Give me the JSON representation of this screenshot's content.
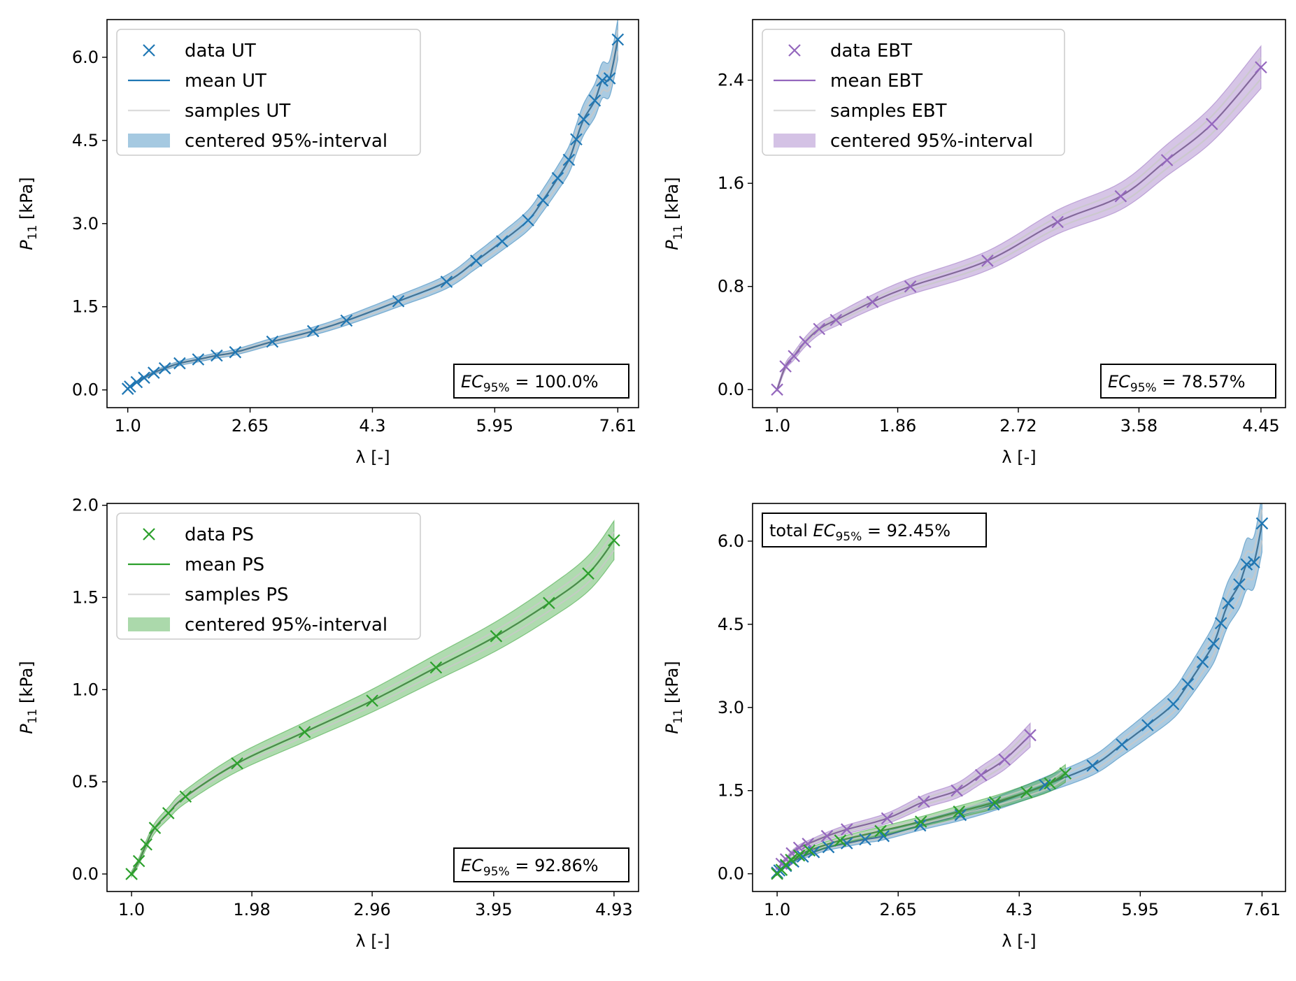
{
  "colors": {
    "ut": "#1f77b4",
    "ebt": "#9467bd",
    "ps": "#2ca02c",
    "sample": "#c8c8c8",
    "mean_overlay": "#707070"
  },
  "chart_data": [
    {
      "type": "line",
      "id": "ut",
      "xlabel": "λ [-]",
      "ylabel_main": "P",
      "ylabel_sub": "11",
      "ylabel_unit": " [kPa]",
      "xlim": [
        0.72,
        7.89
      ],
      "ylim": [
        -0.32,
        6.68
      ],
      "xticks": [
        1.0,
        2.65,
        4.3,
        5.95,
        7.61
      ],
      "xtick_labels": [
        "1.0",
        "2.65",
        "4.3",
        "5.95",
        "7.61"
      ],
      "yticks": [
        0.0,
        1.5,
        3.0,
        4.5,
        6.0
      ],
      "ytick_labels": [
        "0.0",
        "1.5",
        "3.0",
        "4.5",
        "6.0"
      ],
      "legend": [
        "data UT",
        "mean UT",
        "samples UT",
        "centered 95%-interval"
      ],
      "legend_position": "top-left",
      "ec_label": {
        "main": "EC",
        "sub": "95%",
        "value": " = 100.0%"
      },
      "ec_position": "bottom-right",
      "band_halfwidth": 0.055,
      "series": [
        {
          "name": "data UT",
          "color_key": "ut",
          "x": [
            1.0,
            1.03,
            1.12,
            1.22,
            1.35,
            1.5,
            1.7,
            1.95,
            2.2,
            2.45,
            2.95,
            3.5,
            3.95,
            4.65,
            5.3,
            5.7,
            6.05,
            6.4,
            6.6,
            6.8,
            6.95,
            7.05,
            7.15,
            7.3,
            7.4,
            7.5,
            7.61
          ],
          "y": [
            0.02,
            0.06,
            0.14,
            0.22,
            0.31,
            0.39,
            0.48,
            0.55,
            0.62,
            0.68,
            0.87,
            1.06,
            1.25,
            1.6,
            1.95,
            2.33,
            2.68,
            3.06,
            3.42,
            3.82,
            4.15,
            4.52,
            4.88,
            5.22,
            5.58,
            5.62,
            6.32
          ]
        }
      ]
    },
    {
      "type": "line",
      "id": "ebt",
      "xlabel": "λ [-]",
      "ylabel_main": "P",
      "ylabel_sub": "11",
      "ylabel_unit": " [kPa]",
      "xlim": [
        0.825,
        4.625
      ],
      "ylim": [
        -0.14,
        2.87
      ],
      "xticks": [
        1.0,
        1.86,
        2.72,
        3.58,
        4.45
      ],
      "xtick_labels": [
        "1.0",
        "1.86",
        "2.72",
        "3.58",
        "4.45"
      ],
      "yticks": [
        0.0,
        0.8,
        1.6,
        2.4
      ],
      "ytick_labels": [
        "0.0",
        "0.8",
        "1.6",
        "2.4"
      ],
      "legend": [
        "data EBT",
        "mean EBT",
        "samples EBT",
        "centered 95%-interval"
      ],
      "legend_position": "top-left",
      "ec_label": {
        "main": "EC",
        "sub": "95%",
        "value": " = 78.57%"
      },
      "ec_position": "bottom-right",
      "band_halfwidth": 0.06,
      "series": [
        {
          "name": "data EBT",
          "color_key": "ebt",
          "x": [
            1.0,
            1.06,
            1.12,
            1.2,
            1.3,
            1.42,
            1.68,
            1.95,
            2.5,
            3.0,
            3.45,
            3.78,
            4.1,
            4.45
          ],
          "y": [
            0.0,
            0.18,
            0.26,
            0.37,
            0.47,
            0.54,
            0.68,
            0.8,
            1.0,
            1.3,
            1.5,
            1.78,
            2.06,
            2.5
          ]
        }
      ]
    },
    {
      "type": "line",
      "id": "ps",
      "xlabel": "λ [-]",
      "ylabel_main": "P",
      "ylabel_sub": "11",
      "ylabel_unit": " [kPa]",
      "xlim": [
        0.8,
        5.13
      ],
      "ylim": [
        -0.095,
        2.01
      ],
      "xticks": [
        1.0,
        1.98,
        2.96,
        3.95,
        4.93
      ],
      "xtick_labels": [
        "1.0",
        "1.98",
        "2.96",
        "3.95",
        "4.93"
      ],
      "yticks": [
        0.0,
        0.5,
        1.0,
        1.5,
        2.0
      ],
      "ytick_labels": [
        "0.0",
        "0.5",
        "1.0",
        "1.5",
        "2.0"
      ],
      "legend": [
        "data PS",
        "mean PS",
        "samples PS",
        "centered 95%-interval"
      ],
      "legend_position": "top-left",
      "ec_label": {
        "main": "EC",
        "sub": "95%",
        "value": " = 92.86%"
      },
      "ec_position": "bottom-right",
      "band_halfwidth": 0.05,
      "series": [
        {
          "name": "data PS",
          "color_key": "ps",
          "x": [
            1.0,
            1.06,
            1.12,
            1.19,
            1.3,
            1.44,
            1.86,
            2.41,
            2.96,
            3.48,
            3.97,
            4.4,
            4.72,
            4.93
          ],
          "y": [
            0.0,
            0.07,
            0.16,
            0.25,
            0.33,
            0.42,
            0.6,
            0.77,
            0.94,
            1.12,
            1.29,
            1.47,
            1.63,
            1.81
          ]
        }
      ]
    },
    {
      "type": "line",
      "id": "total",
      "xlabel": "λ [-]",
      "ylabel_main": "P",
      "ylabel_sub": "11",
      "ylabel_unit": " [kPa]",
      "xlim": [
        0.665,
        7.93
      ],
      "ylim": [
        -0.32,
        6.68
      ],
      "xticks": [
        1.0,
        2.65,
        4.3,
        5.95,
        7.61
      ],
      "xtick_labels": [
        "1.0",
        "2.65",
        "4.3",
        "5.95",
        "7.61"
      ],
      "yticks": [
        0.0,
        1.5,
        3.0,
        4.5,
        6.0
      ],
      "ytick_labels": [
        "0.0",
        "1.5",
        "3.0",
        "4.5",
        "6.0"
      ],
      "legend": [],
      "ec_label": {
        "prefix": "total ",
        "main": "EC",
        "sub": "95%",
        "value": " = 92.45%"
      },
      "ec_position": "top-left",
      "band_halfwidth": 0.08,
      "series": [
        {
          "name": "data UT",
          "color_key": "ut",
          "x": [
            1.0,
            1.03,
            1.12,
            1.22,
            1.35,
            1.5,
            1.7,
            1.95,
            2.2,
            2.45,
            2.95,
            3.5,
            3.95,
            4.65,
            5.3,
            5.7,
            6.05,
            6.4,
            6.6,
            6.8,
            6.95,
            7.05,
            7.15,
            7.3,
            7.4,
            7.5,
            7.61
          ],
          "y": [
            0.02,
            0.06,
            0.14,
            0.22,
            0.31,
            0.39,
            0.48,
            0.55,
            0.62,
            0.68,
            0.87,
            1.06,
            1.25,
            1.6,
            1.95,
            2.33,
            2.68,
            3.06,
            3.42,
            3.82,
            4.15,
            4.52,
            4.88,
            5.22,
            5.58,
            5.62,
            6.32
          ]
        },
        {
          "name": "data EBT",
          "color_key": "ebt",
          "x": [
            1.0,
            1.06,
            1.12,
            1.2,
            1.3,
            1.42,
            1.68,
            1.95,
            2.5,
            3.0,
            3.45,
            3.78,
            4.1,
            4.45
          ],
          "y": [
            0.0,
            0.18,
            0.26,
            0.37,
            0.47,
            0.54,
            0.68,
            0.8,
            1.0,
            1.3,
            1.5,
            1.78,
            2.06,
            2.5
          ]
        },
        {
          "name": "data PS",
          "color_key": "ps",
          "x": [
            1.0,
            1.06,
            1.12,
            1.19,
            1.3,
            1.44,
            1.86,
            2.41,
            2.96,
            3.48,
            3.97,
            4.4,
            4.72,
            4.93
          ],
          "y": [
            0.0,
            0.07,
            0.16,
            0.25,
            0.33,
            0.42,
            0.6,
            0.77,
            0.94,
            1.12,
            1.29,
            1.47,
            1.63,
            1.81
          ]
        }
      ]
    }
  ]
}
